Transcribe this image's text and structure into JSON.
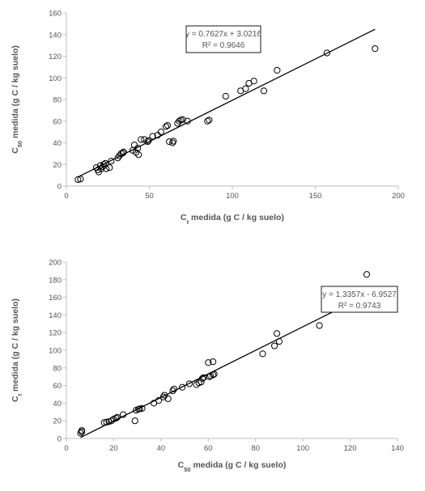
{
  "chart_data": [
    {
      "type": "scatter",
      "title": "",
      "xlabel": {
        "pre": "C",
        "sub": "t",
        "post": " medida  (g C / kg suelo)"
      },
      "ylabel": {
        "pre": "C",
        "sub": "50",
        "post": " medida  (g C / kg suelo)"
      },
      "xlim": [
        0,
        200
      ],
      "ylim": [
        0,
        160
      ],
      "xticks": [
        0,
        50,
        100,
        150,
        200
      ],
      "yticks": [
        0,
        20,
        40,
        60,
        80,
        100,
        120,
        140,
        160
      ],
      "grid": false,
      "trendline": {
        "slope": 0.7627,
        "intercept": 3.0216,
        "x_range": [
          7,
          186
        ]
      },
      "equation": "y = 0.7627x + 3.0216",
      "r2": "R² = 0.9646",
      "points": [
        [
          7,
          6
        ],
        [
          8.5,
          6.5
        ],
        [
          18,
          17
        ],
        [
          19,
          15
        ],
        [
          19.5,
          13
        ],
        [
          20.5,
          19
        ],
        [
          21,
          16
        ],
        [
          22,
          18
        ],
        [
          22.5,
          20
        ],
        [
          23.5,
          21
        ],
        [
          24,
          16
        ],
        [
          26,
          17
        ],
        [
          27,
          23
        ],
        [
          31,
          26
        ],
        [
          32,
          28
        ],
        [
          33,
          30
        ],
        [
          34,
          30.5
        ],
        [
          34.5,
          31.5
        ],
        [
          40,
          33
        ],
        [
          41,
          38
        ],
        [
          42,
          31
        ],
        [
          43,
          35
        ],
        [
          43.5,
          29
        ],
        [
          45,
          43
        ],
        [
          47,
          43
        ],
        [
          49,
          41
        ],
        [
          49.5,
          42
        ],
        [
          52,
          46
        ],
        [
          55,
          47
        ],
        [
          57,
          50
        ],
        [
          60,
          55
        ],
        [
          61,
          56
        ],
        [
          62,
          41
        ],
        [
          64,
          40
        ],
        [
          64.5,
          41.5
        ],
        [
          67,
          58
        ],
        [
          68,
          60
        ],
        [
          69,
          61
        ],
        [
          70,
          61.5
        ],
        [
          73,
          60
        ],
        [
          85,
          60
        ],
        [
          86,
          61
        ],
        [
          96,
          83
        ],
        [
          105,
          88
        ],
        [
          108,
          90
        ],
        [
          110,
          95
        ],
        [
          113,
          97
        ],
        [
          119,
          88
        ],
        [
          127,
          107
        ],
        [
          157,
          123
        ],
        [
          186,
          127
        ]
      ]
    },
    {
      "type": "scatter",
      "title": "",
      "xlabel": {
        "pre": "C",
        "sub": "50",
        "post": " medida  (g C / kg suelo)"
      },
      "ylabel": {
        "pre": "C",
        "sub": "t",
        "post": " medida  (g C / kg suelo)"
      },
      "xlim": [
        0,
        140
      ],
      "ylim": [
        0,
        200
      ],
      "xticks": [
        0,
        20,
        40,
        60,
        80,
        100,
        120,
        140
      ],
      "yticks": [
        0,
        20,
        40,
        60,
        80,
        100,
        120,
        140,
        160,
        180,
        200
      ],
      "grid": false,
      "trendline": {
        "slope": 1.3357,
        "intercept": -6.9527,
        "x_range": [
          6,
          127
        ]
      },
      "equation": "y = 1.3357x - 6.9527",
      "r2": "R² = 0.9743",
      "points": [
        [
          6,
          6
        ],
        [
          6.5,
          7.5
        ],
        [
          6.5,
          9
        ],
        [
          16,
          18
        ],
        [
          17,
          18.5
        ],
        [
          18,
          19
        ],
        [
          19,
          20
        ],
        [
          20,
          22
        ],
        [
          21,
          23
        ],
        [
          21.5,
          24
        ],
        [
          24,
          27
        ],
        [
          29,
          20
        ],
        [
          29.5,
          32
        ],
        [
          30.5,
          33
        ],
        [
          31,
          33.5
        ],
        [
          32,
          34
        ],
        [
          37,
          40
        ],
        [
          39,
          43
        ],
        [
          41,
          47
        ],
        [
          41.5,
          49
        ],
        [
          43,
          45
        ],
        [
          45,
          54
        ],
        [
          45.5,
          56
        ],
        [
          49,
          58
        ],
        [
          52,
          62
        ],
        [
          55,
          61
        ],
        [
          56,
          63
        ],
        [
          57,
          64
        ],
        [
          57.5,
          68
        ],
        [
          58,
          69
        ],
        [
          60,
          86
        ],
        [
          60.5,
          70
        ],
        [
          61,
          71
        ],
        [
          62,
          72
        ],
        [
          62.5,
          73
        ],
        [
          62,
          87
        ],
        [
          83,
          96
        ],
        [
          88,
          105
        ],
        [
          89,
          119
        ],
        [
          90,
          110
        ],
        [
          107,
          128
        ],
        [
          123,
          157
        ],
        [
          127,
          186
        ]
      ]
    }
  ]
}
